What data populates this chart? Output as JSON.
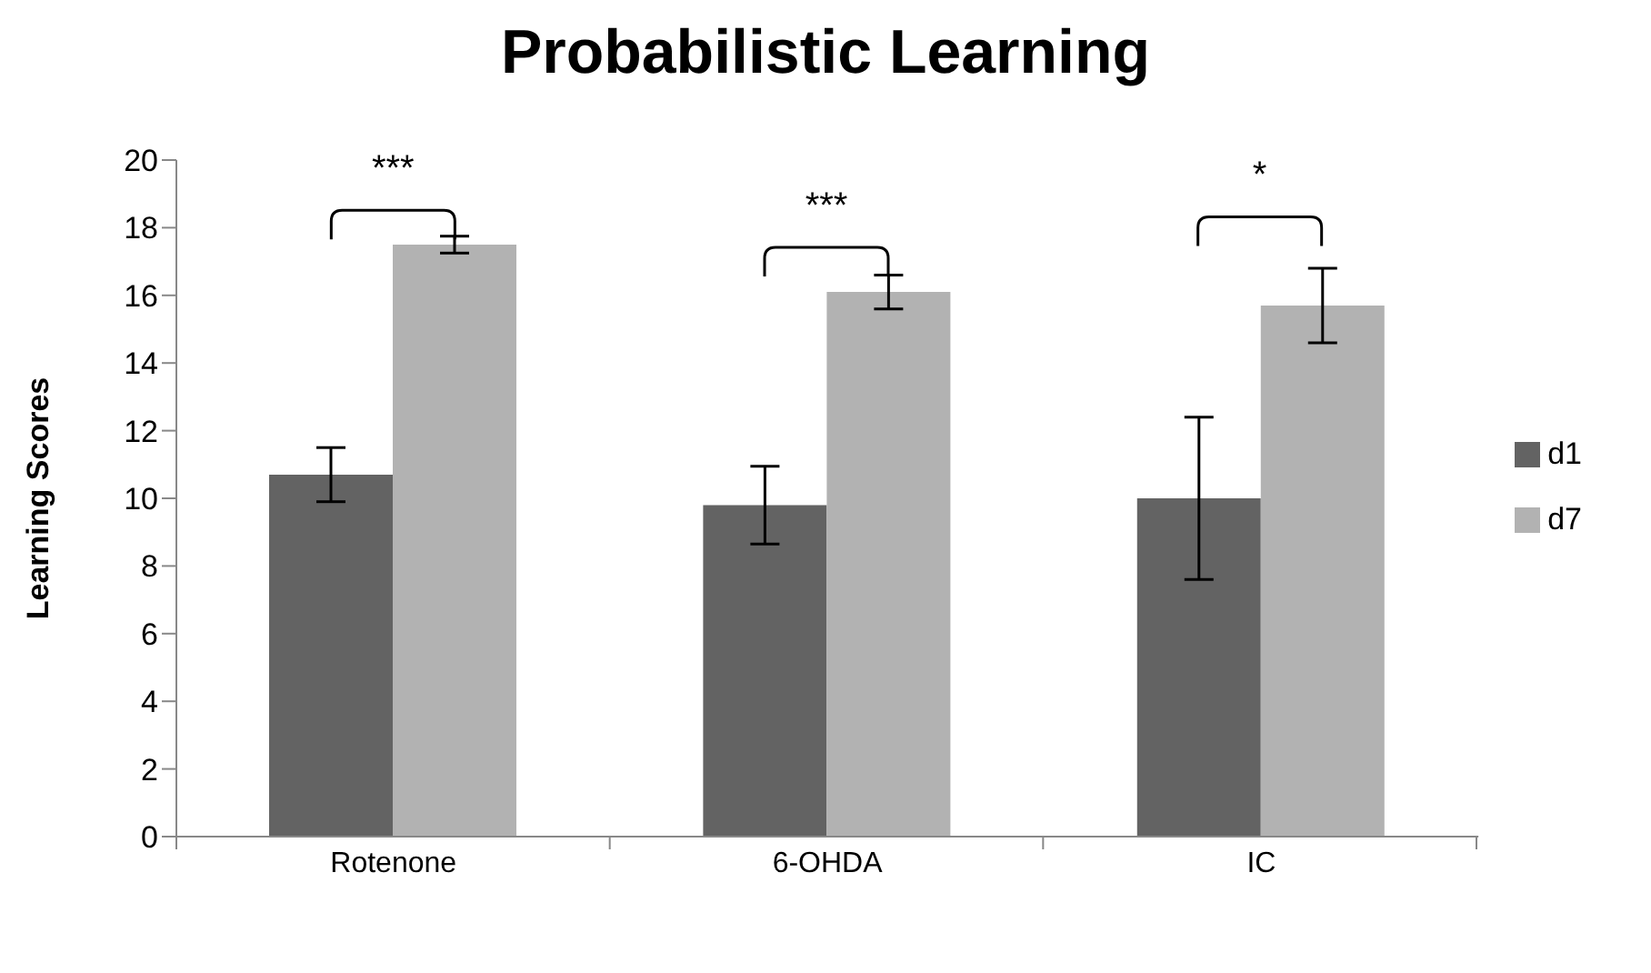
{
  "chart_data": {
    "type": "bar",
    "title": "Probabilistic Learning",
    "ylabel": "Learning Scores",
    "categories": [
      "Rotenone",
      "6-OHDA",
      "IC"
    ],
    "series": [
      {
        "name": "d1",
        "color": "#636363",
        "values": [
          10.7,
          9.8,
          10.0
        ],
        "errors": [
          0.8,
          1.15,
          2.4
        ]
      },
      {
        "name": "d7",
        "color": "#b2b2b2",
        "values": [
          17.5,
          16.1,
          15.7
        ],
        "errors": [
          0.25,
          0.5,
          1.1
        ]
      }
    ],
    "ylim": [
      0,
      20
    ],
    "yticks": [
      0,
      2,
      4,
      6,
      8,
      10,
      12,
      14,
      16,
      18,
      20
    ],
    "grid": false,
    "legend": "right",
    "annotations": [
      "***",
      "***",
      "*"
    ]
  }
}
